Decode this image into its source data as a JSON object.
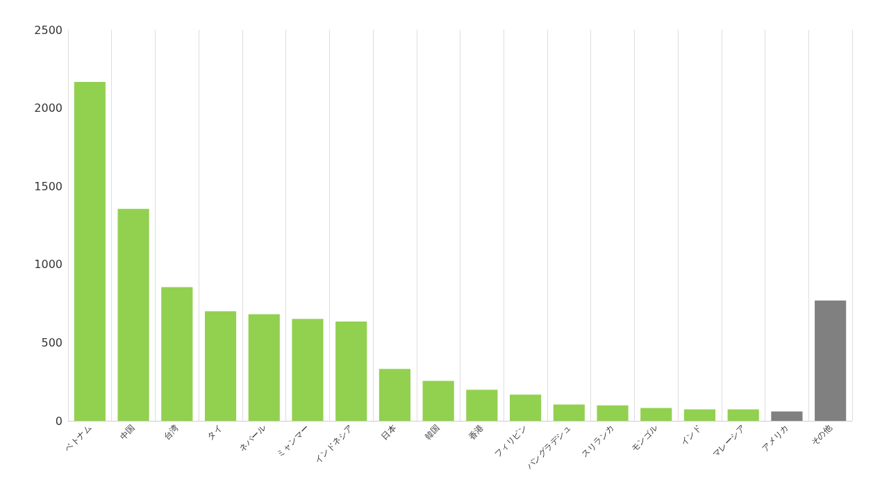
{
  "chart_data": {
    "type": "bar",
    "categories": [
      "ベトナム",
      "中国",
      "台湾",
      "タイ",
      "ネパール",
      "ミャンマー",
      "インドネシア",
      "日本",
      "韓国",
      "香港",
      "フィリピン",
      "バングラデシュ",
      "スリランカ",
      "モンゴル",
      "インド",
      "マレーシア",
      "アメリカ",
      "その他"
    ],
    "values": [
      2167,
      1356,
      855,
      700,
      682,
      652,
      635,
      332,
      255,
      199,
      168,
      104,
      99,
      82,
      73,
      73,
      60,
      769
    ],
    "colors": [
      "#92d050",
      "#92d050",
      "#92d050",
      "#92d050",
      "#92d050",
      "#92d050",
      "#92d050",
      "#92d050",
      "#92d050",
      "#92d050",
      "#92d050",
      "#92d050",
      "#92d050",
      "#92d050",
      "#92d050",
      "#92d050",
      "#808080",
      "#808080"
    ],
    "ylim": [
      0,
      2500
    ],
    "yticks": [
      0,
      500,
      1000,
      1500,
      2000,
      2500
    ],
    "grid": "x"
  }
}
